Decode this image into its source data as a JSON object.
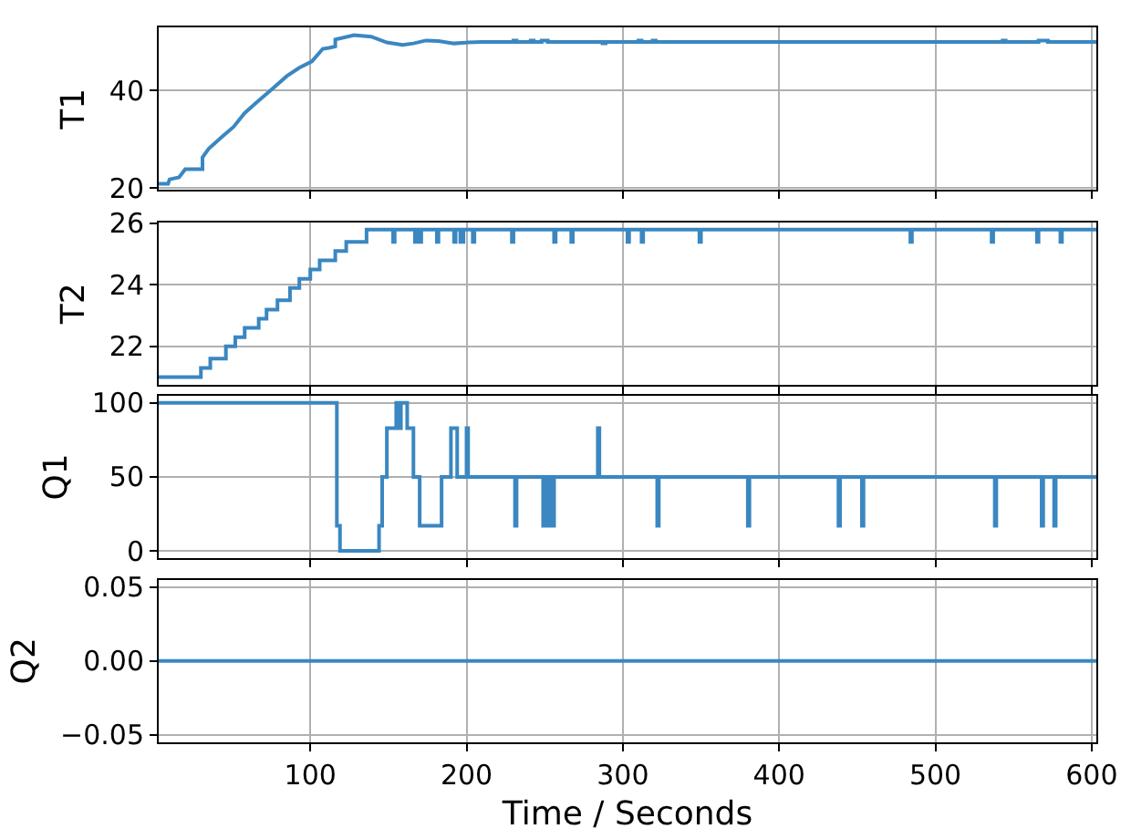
{
  "chart_data": [
    {
      "type": "line",
      "ylabel": "T1",
      "color": "#3a87c1",
      "grid": true,
      "tick_labels": "y",
      "xlim": [
        3,
        603
      ],
      "xticks": [
        100,
        200,
        300,
        400,
        500,
        600
      ],
      "ylim": [
        19.6,
        53.0
      ],
      "yticks": [
        20,
        40
      ],
      "x": [
        3,
        9,
        10,
        16,
        20,
        31,
        31,
        35,
        43,
        51,
        58,
        66,
        74,
        85,
        93,
        101,
        108,
        112,
        116,
        116,
        128,
        139,
        149,
        159,
        166,
        174,
        182,
        192,
        201,
        210,
        230,
        230,
        232,
        232,
        241,
        241,
        243,
        243,
        248,
        248,
        252,
        252,
        287,
        287,
        289,
        289,
        310,
        310,
        312,
        312,
        319,
        319,
        321,
        321,
        543,
        543,
        545,
        545,
        566,
        566,
        572,
        572,
        603
      ],
      "values": [
        20.9,
        20.9,
        21.8,
        22.2,
        23.9,
        23.9,
        26.3,
        28.1,
        30.4,
        32.6,
        35.4,
        37.7,
        39.9,
        43.0,
        44.7,
        46.0,
        48.6,
        48.8,
        49.1,
        50.5,
        51.4,
        51.1,
        49.9,
        49.4,
        49.7,
        50.3,
        50.2,
        49.7,
        49.9,
        50,
        50,
        50.3,
        50.3,
        50,
        50,
        50.3,
        50.3,
        50,
        50,
        50.3,
        50.3,
        50,
        50,
        49.7,
        49.7,
        50,
        50,
        50.3,
        50.3,
        50,
        50,
        50.3,
        50.3,
        50,
        50,
        50.3,
        50.3,
        50,
        50,
        50.3,
        50.3,
        50,
        50
      ]
    },
    {
      "type": "step",
      "ylabel": "T2",
      "color": "#3a87c1",
      "grid": true,
      "tick_labels": "y",
      "xlim": [
        3,
        603
      ],
      "xticks": [
        100,
        200,
        300,
        400,
        500,
        600
      ],
      "ylim": [
        20.75,
        26.04
      ],
      "yticks": [
        22,
        24,
        26
      ],
      "x": [
        3,
        30,
        36,
        46,
        52,
        58,
        67,
        72,
        79,
        87,
        93,
        100,
        106,
        116,
        123,
        136,
        153,
        154,
        167,
        168,
        170,
        171,
        181,
        182,
        192,
        193,
        196,
        198,
        204,
        205,
        229,
        230,
        256,
        257,
        267,
        268,
        303,
        304,
        312,
        313,
        349,
        350,
        484,
        485,
        536,
        537,
        565,
        566,
        580,
        581,
        603
      ],
      "values": [
        21.0,
        21.3,
        21.6,
        22.0,
        22.3,
        22.6,
        22.9,
        23.2,
        23.5,
        23.9,
        24.2,
        24.5,
        24.8,
        25.1,
        25.4,
        25.8,
        25.4,
        25.8,
        25.4,
        25.8,
        25.4,
        25.8,
        25.4,
        25.8,
        25.4,
        25.8,
        25.4,
        25.8,
        25.4,
        25.8,
        25.4,
        25.8,
        25.4,
        25.8,
        25.4,
        25.8,
        25.4,
        25.8,
        25.4,
        25.8,
        25.4,
        25.8,
        25.4,
        25.8,
        25.4,
        25.8,
        25.4,
        25.8,
        25.4,
        25.8,
        25.8
      ]
    },
    {
      "type": "step",
      "ylabel": "Q1",
      "color": "#3a87c1",
      "grid": true,
      "tick_labels": "y",
      "xlim": [
        3,
        603
      ],
      "xticks": [
        100,
        200,
        300,
        400,
        500,
        600
      ],
      "ylim": [
        -5,
        105
      ],
      "yticks": [
        0,
        50,
        100
      ],
      "x": [
        3,
        117,
        119,
        144,
        146,
        149,
        155,
        156,
        158,
        162,
        166,
        170,
        184,
        190,
        194,
        200,
        201,
        231,
        232,
        249,
        250,
        252,
        253,
        254,
        256,
        284,
        285,
        322,
        323,
        380,
        381,
        438,
        439,
        453,
        454,
        538,
        539,
        568,
        569,
        576,
        577,
        603
      ],
      "values": [
        100,
        17,
        0,
        17,
        50,
        83,
        100,
        83,
        100,
        83,
        50,
        17,
        50,
        83,
        50,
        83,
        50,
        17,
        50,
        17,
        50,
        17,
        50,
        17,
        50,
        83,
        50,
        17,
        50,
        17,
        50,
        17,
        50,
        17,
        50,
        17,
        50,
        17,
        50,
        17,
        50,
        50
      ]
    },
    {
      "type": "line",
      "ylabel": "Q2",
      "xlabel": "Time / Seconds",
      "color": "#3a87c1",
      "grid": true,
      "xlim": [
        3,
        603
      ],
      "xticks": [
        100,
        200,
        300,
        400,
        500,
        600
      ],
      "ylim": [
        -0.055,
        0.055
      ],
      "yticks": [
        {
          "value": -0.05,
          "label": "−0.05"
        },
        {
          "value": 0,
          "label": "0.00"
        },
        {
          "value": 0.05,
          "label": "0.05"
        }
      ],
      "x": [
        3,
        603
      ],
      "values": [
        0,
        0
      ]
    }
  ]
}
